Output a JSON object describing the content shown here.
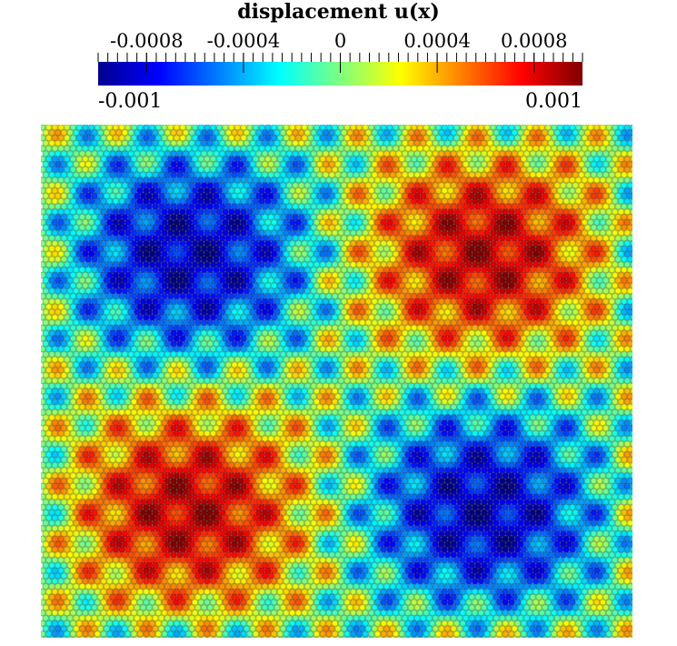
{
  "chart_data": {
    "type": "heatmap",
    "title": "displacement u(x)",
    "colormap": "jet",
    "color_range": [
      -0.001,
      0.001
    ],
    "range_labels": [
      "-0.001",
      "0.001"
    ],
    "ticks": [
      {
        "value": -0.0008,
        "label": "-0.0008"
      },
      {
        "value": -0.0004,
        "label": "-0.0004"
      },
      {
        "value": 0,
        "label": "0"
      },
      {
        "value": 0.0004,
        "label": "0.0004"
      },
      {
        "value": 0.0008,
        "label": "0.0008"
      }
    ],
    "field_description_quadrants": {
      "top_left": "negative (~-0.001)",
      "top_right": "positive (~0.001)",
      "bottom_left": "positive (~0.001)",
      "bottom_right": "negative (~-0.001)"
    },
    "colors": [
      "#00007f",
      "#0000ff",
      "#00ffff",
      "#7fff7f",
      "#ffff00",
      "#ff0000",
      "#7f0000"
    ]
  }
}
